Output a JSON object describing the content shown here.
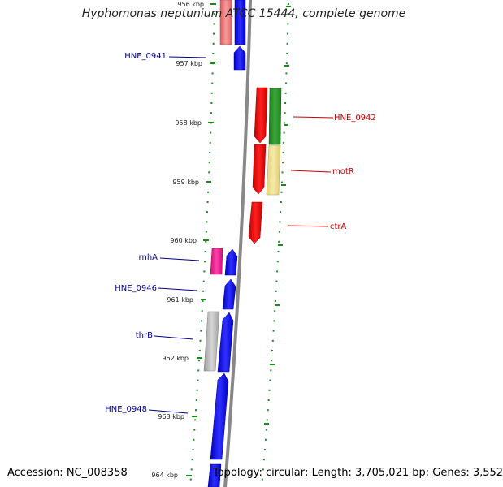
{
  "title": "Hyphomonas neptunium ATCC 15444, complete genome",
  "footer": {
    "accession": "Accession: NC_008358",
    "topology": "Topology: circular; Length: 3,705,021 bp; Genes: 3,552"
  },
  "colors": {
    "forward_gene": "#1010ee",
    "reverse_gene": "#ee1010",
    "forward_label": "#00008b",
    "reverse_label": "#cc0000",
    "tick": "#1a8a1a",
    "backbone": "#888888"
  },
  "ticks": [
    "956 kbp",
    "957 kbp",
    "958 kbp",
    "959 kbp",
    "960 kbp",
    "961 kbp",
    "962 kbp",
    "963 kbp",
    "964 kbp"
  ],
  "gene_labels": [
    {
      "name": "HNE_0941",
      "strand": "forward"
    },
    {
      "name": "HNE_0942",
      "strand": "reverse"
    },
    {
      "name": "motR",
      "strand": "reverse"
    },
    {
      "name": "ctrA",
      "strand": "reverse"
    },
    {
      "name": "rnhA",
      "strand": "forward"
    },
    {
      "name": "HNE_0946",
      "strand": "forward"
    },
    {
      "name": "thrB",
      "strand": "forward"
    },
    {
      "name": "HNE_0948",
      "strand": "forward"
    }
  ]
}
